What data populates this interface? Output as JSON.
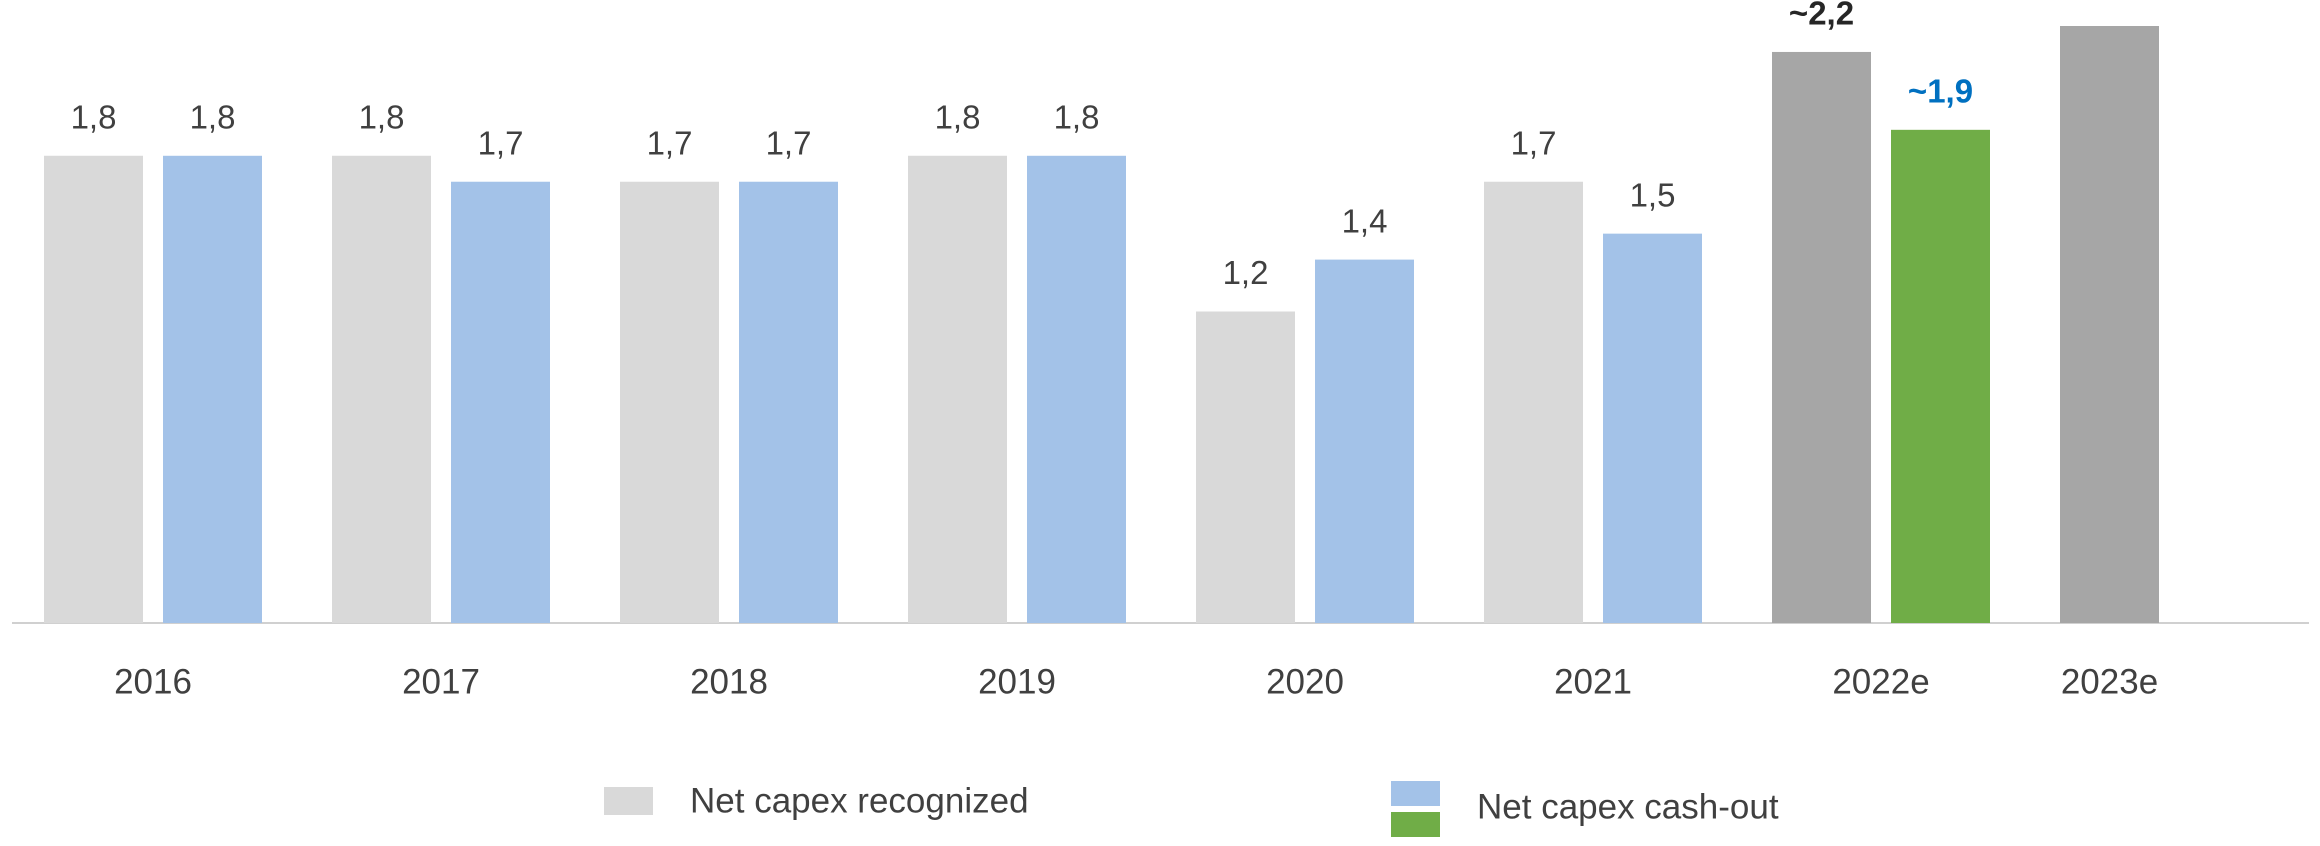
{
  "chart_data": {
    "type": "bar",
    "categories": [
      "2016",
      "2017",
      "2018",
      "2019",
      "2020",
      "2021",
      "2022e",
      "2023e"
    ],
    "series": [
      {
        "name": "Net capex recognized",
        "color": "#d9d9d9",
        "colors": [
          "#d9d9d9",
          "#d9d9d9",
          "#d9d9d9",
          "#d9d9d9",
          "#d9d9d9",
          "#d9d9d9",
          "#a6a6a6",
          "#a6a6a6"
        ],
        "values": [
          1.8,
          1.8,
          1.7,
          1.8,
          1.2,
          1.7,
          2.2,
          2.3
        ],
        "value_labels": [
          "1,8",
          "1,8",
          "1,7",
          "1,8",
          "1,2",
          "1,7",
          "~2,2",
          null
        ],
        "value_label_colors": [
          "#404040",
          "#404040",
          "#404040",
          "#404040",
          "#404040",
          "#404040",
          "#262626",
          null
        ]
      },
      {
        "name": "Net capex cash-out",
        "color": "#a3c2e8",
        "colors": [
          "#a3c2e8",
          "#a3c2e8",
          "#a3c2e8",
          "#a3c2e8",
          "#a3c2e8",
          "#a3c2e8",
          "#70ad47",
          null
        ],
        "legend_colors": [
          "#a3c2e8",
          "#70ad47"
        ],
        "values": [
          1.8,
          1.7,
          1.7,
          1.8,
          1.4,
          1.5,
          1.9,
          null
        ],
        "value_labels": [
          "1,8",
          "1,7",
          "1,7",
          "1,8",
          "1,4",
          "1,5",
          "~1,9",
          null
        ],
        "value_label_colors": [
          "#404040",
          "#404040",
          "#404040",
          "#404040",
          "#404040",
          "#404040",
          "#0070c0",
          null
        ]
      }
    ],
    "legend": "bottom"
  }
}
